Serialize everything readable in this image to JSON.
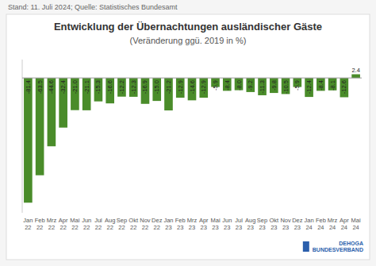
{
  "chart_data": {
    "type": "bar",
    "title": "Entwicklung der Übernachtungen ausländischer Gäste",
    "subtitle": "(Veränderung ggü. 2019 in %)",
    "annotations": [
      "Stand: 11. Juli 2024; Quelle: Statistisches Bundesamt",
      "DEHOGA\nBUNDESVERBAND"
    ],
    "categories": [
      "Jan\n22",
      "Feb\n22",
      "Mrz\n22",
      "Apr\n22",
      "Mai\n22",
      "Jun\n22",
      "Jul\n22",
      "Aug\n22",
      "Sep\n22",
      "Okt\n22",
      "Nov\n22",
      "Dez\n22",
      "Jan\n23",
      "Feb\n23",
      "Mrz\n23",
      "Apr\n23",
      "Mai\n23",
      "Jun\n23",
      "Jul\n23",
      "Aug\n23",
      "Sep\n23",
      "Okt\n23",
      "Nov\n23",
      "Dez\n23",
      "Jan\n24",
      "Feb\n24",
      "Mrz\n24",
      "Apr\n24",
      "Mai\n24"
    ],
    "values": [
      -81.4,
      -63.5,
      -44.6,
      -32.4,
      -21.0,
      -21.1,
      -15.3,
      -16.6,
      -12.2,
      -12.3,
      -16.9,
      -15.0,
      -21.2,
      -12.9,
      -14.6,
      -12.9,
      -5.9,
      -8.4,
      -8.0,
      -9.2,
      -11.3,
      -9.8,
      -10.5,
      -5.9,
      -12.4,
      -8.4,
      -8.1,
      -12.6,
      2.4
    ],
    "value_labels": [
      "-81.4",
      "-63.5",
      "-44.6",
      "-32.4",
      "-21.0",
      "-21.1",
      "-15.3",
      "-16.6",
      "-12.2",
      "-12.3",
      "-16.9",
      "-15.0",
      "-21.2",
      "-12.9",
      "-14.6",
      "-12.9",
      "-5.9",
      "-8.4",
      "-8.0",
      "-9.2",
      "-11.3",
      "-9.8",
      "-10.5",
      "-5.9",
      "-12.4",
      "-8.4",
      "-8.1",
      "-12.6",
      "2.4"
    ],
    "color": "#4a8c2a",
    "ylim": [
      -88,
      12
    ],
    "grid": false,
    "data_labels": true,
    "tick_labels": "x"
  }
}
